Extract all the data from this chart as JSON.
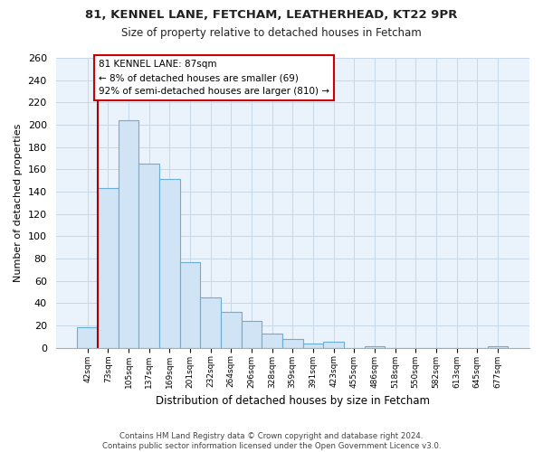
{
  "title1": "81, KENNEL LANE, FETCHAM, LEATHERHEAD, KT22 9PR",
  "title2": "Size of property relative to detached houses in Fetcham",
  "xlabel": "Distribution of detached houses by size in Fetcham",
  "ylabel": "Number of detached properties",
  "bin_labels": [
    "42sqm",
    "73sqm",
    "105sqm",
    "137sqm",
    "169sqm",
    "201sqm",
    "232sqm",
    "264sqm",
    "296sqm",
    "328sqm",
    "359sqm",
    "391sqm",
    "423sqm",
    "455sqm",
    "486sqm",
    "518sqm",
    "550sqm",
    "582sqm",
    "613sqm",
    "645sqm",
    "677sqm"
  ],
  "bar_heights": [
    18,
    143,
    204,
    165,
    151,
    77,
    45,
    32,
    24,
    13,
    8,
    4,
    5,
    0,
    1,
    0,
    0,
    0,
    0,
    0,
    1
  ],
  "bar_fill": "#d0e4f5",
  "bar_edge": "#6aaed6",
  "vline_color": "#aa0000",
  "annotation_title": "81 KENNEL LANE: 87sqm",
  "annotation_line1": "← 8% of detached houses are smaller (69)",
  "annotation_line2": "92% of semi-detached houses are larger (810) →",
  "annotation_box_facecolor": "#ffffff",
  "annotation_box_edgecolor": "#cc0000",
  "ylim": [
    0,
    260
  ],
  "yticks": [
    0,
    20,
    40,
    60,
    80,
    100,
    120,
    140,
    160,
    180,
    200,
    220,
    240,
    260
  ],
  "footer1": "Contains HM Land Registry data © Crown copyright and database right 2024.",
  "footer2": "Contains public sector information licensed under the Open Government Licence v3.0.",
  "bg_color": "#ffffff",
  "plot_bg_color": "#eaf2fb",
  "grid_color": "#c8d8e8"
}
